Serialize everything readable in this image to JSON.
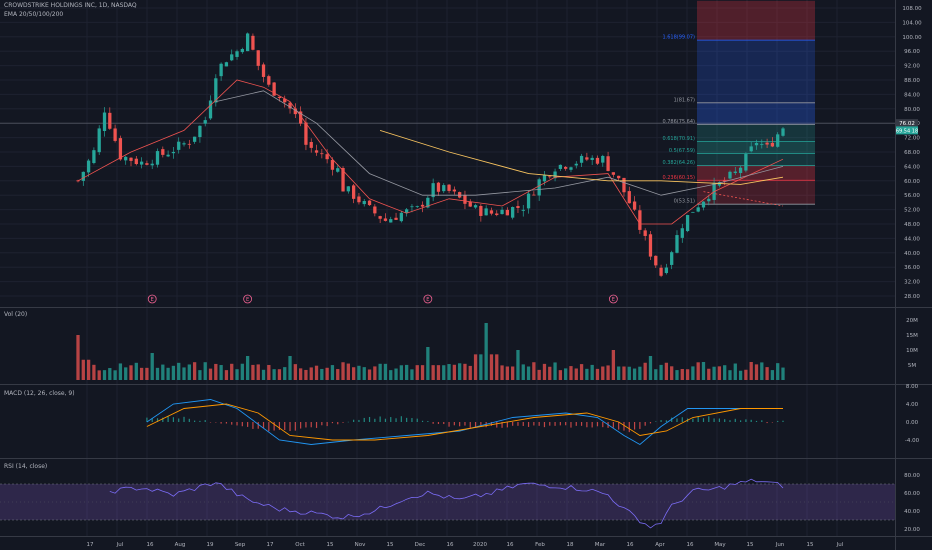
{
  "header": {
    "symbol": "CROWDSTRIKE HOLDINGS INC, 1D, NASDAQ",
    "ema": "EMA 20/50/100/200"
  },
  "panes": {
    "volume": "Vol (20)",
    "macd": "MACD (12, 26, close, 9)",
    "rsi": "RSI (14, close)"
  },
  "price_badges": [
    "76.02",
    "69.54 18"
  ],
  "earnings_marker": "E",
  "colors": {
    "up": "#26a69a",
    "down": "#ef5350",
    "bg": "#131722",
    "ema20": "#ef5350",
    "ema50": "#9598a1",
    "ema100": "#f7c35f",
    "macd": "#2196f3",
    "signal": "#ff9800",
    "rsi": "#7b6cf6"
  },
  "chart_data": [
    {
      "type": "candlestick",
      "name": "price",
      "x_ticks": [
        "17",
        "Jul",
        "16",
        "Aug",
        "19",
        "Sep",
        "17",
        "Oct",
        "15",
        "Nov",
        "15",
        "Dec",
        "16",
        "2020",
        "16",
        "Feb",
        "18",
        "Mar",
        "16",
        "Apr",
        "16",
        "May",
        "15",
        "Jun",
        "15",
        "Jul"
      ],
      "y_ticks": [
        "108.00",
        "104.00",
        "100.00",
        "96.00",
        "92.00",
        "88.00",
        "84.00",
        "80.00",
        "76.00",
        "72.00",
        "68.00",
        "64.00",
        "60.00",
        "56.00",
        "52.00",
        "48.00",
        "44.00",
        "40.00",
        "36.00",
        "32.00",
        "28.00"
      ],
      "ylim": [
        26,
        110
      ],
      "close_path": [
        [
          0,
          60
        ],
        [
          3,
          68
        ],
        [
          5,
          80
        ],
        [
          8,
          67
        ],
        [
          12,
          65
        ],
        [
          17,
          68
        ],
        [
          21,
          71
        ],
        [
          24,
          77
        ],
        [
          26,
          90
        ],
        [
          28,
          94
        ],
        [
          30,
          96
        ],
        [
          32,
          100
        ],
        [
          34,
          92
        ],
        [
          36,
          86
        ],
        [
          38,
          84
        ],
        [
          40,
          80
        ],
        [
          42,
          76
        ],
        [
          43,
          70
        ],
        [
          45,
          68
        ],
        [
          47,
          66
        ],
        [
          49,
          63
        ],
        [
          50,
          58
        ],
        [
          52,
          56
        ],
        [
          55,
          52
        ],
        [
          58,
          49
        ],
        [
          61,
          51
        ],
        [
          64,
          52
        ],
        [
          67,
          58
        ],
        [
          70,
          57
        ],
        [
          72,
          55
        ],
        [
          75,
          52
        ],
        [
          78,
          51
        ],
        [
          81,
          52
        ],
        [
          84,
          53
        ],
        [
          87,
          60
        ],
        [
          90,
          64
        ],
        [
          93,
          65
        ],
        [
          96,
          66
        ],
        [
          99,
          66
        ],
        [
          102,
          60
        ],
        [
          104,
          54
        ],
        [
          106,
          47
        ],
        [
          108,
          40
        ],
        [
          110,
          34
        ],
        [
          112,
          41
        ],
        [
          114,
          48
        ],
        [
          116,
          52
        ],
        [
          118,
          55
        ],
        [
          120,
          58
        ],
        [
          122,
          60
        ],
        [
          124,
          62
        ],
        [
          126,
          66
        ],
        [
          128,
          71
        ],
        [
          130,
          69
        ],
        [
          132,
          73
        ],
        [
          133,
          75
        ]
      ],
      "n_days": 134,
      "ema20": [
        [
          0,
          60
        ],
        [
          10,
          68
        ],
        [
          20,
          74
        ],
        [
          30,
          88
        ],
        [
          35,
          86
        ],
        [
          40,
          82
        ],
        [
          48,
          66
        ],
        [
          55,
          55
        ],
        [
          62,
          51
        ],
        [
          70,
          55
        ],
        [
          80,
          53
        ],
        [
          90,
          61
        ],
        [
          100,
          62
        ],
        [
          106,
          48
        ],
        [
          112,
          48
        ],
        [
          120,
          57
        ],
        [
          133,
          66
        ]
      ],
      "ema50": [
        [
          26,
          82
        ],
        [
          35,
          85
        ],
        [
          45,
          76
        ],
        [
          55,
          62
        ],
        [
          65,
          56
        ],
        [
          75,
          56
        ],
        [
          90,
          58
        ],
        [
          100,
          61
        ],
        [
          110,
          56
        ],
        [
          120,
          59
        ],
        [
          133,
          64
        ]
      ],
      "ema100": [
        [
          57,
          74
        ],
        [
          70,
          68
        ],
        [
          85,
          62
        ],
        [
          100,
          60
        ],
        [
          110,
          60
        ],
        [
          125,
          59
        ],
        [
          133,
          61
        ]
      ],
      "ema200": [
        [
          118,
          57
        ],
        [
          133,
          53
        ]
      ],
      "fibonacci": [
        {
          "label": "1.618(99.07)",
          "value": 99.07
        },
        {
          "label": "1(81.67)",
          "value": 81.67
        },
        {
          "label": "0.786(75.64)",
          "value": 75.64
        },
        {
          "label": "0.618(70.91)",
          "value": 70.91
        },
        {
          "label": "0.5(67.59)",
          "value": 67.59
        },
        {
          "label": "0.382(64.26)",
          "value": 64.26
        },
        {
          "label": "0.236(60.15)",
          "value": 60.15
        },
        {
          "label": "0(53.51)",
          "value": 53.51
        }
      ],
      "fib_upper_bound": 110,
      "earnings_days": [
        14,
        32,
        66,
        101
      ]
    },
    {
      "type": "bar",
      "name": "volume",
      "y_ticks": [
        "20M",
        "15M",
        "10M",
        "5M"
      ],
      "ylim": [
        0,
        25
      ],
      "spikes": [
        [
          0,
          15
        ],
        [
          14,
          9
        ],
        [
          32,
          8
        ],
        [
          40,
          8
        ],
        [
          66,
          11
        ],
        [
          77,
          19
        ],
        [
          83,
          10
        ],
        [
          101,
          10
        ],
        [
          108,
          8
        ],
        [
          118,
          6
        ],
        [
          127,
          6
        ]
      ],
      "baseline": 3
    },
    {
      "type": "line",
      "name": "macd",
      "y_ticks": [
        "8.00",
        "4.00",
        "0.00",
        "-4.00"
      ],
      "ylim": [
        -8,
        8
      ],
      "macd": [
        [
          13,
          0
        ],
        [
          18,
          4
        ],
        [
          25,
          5
        ],
        [
          30,
          3
        ],
        [
          38,
          -4
        ],
        [
          44,
          -5
        ],
        [
          52,
          -4
        ],
        [
          62,
          -3
        ],
        [
          72,
          -2
        ],
        [
          82,
          1
        ],
        [
          92,
          2
        ],
        [
          98,
          1
        ],
        [
          103,
          -3
        ],
        [
          106,
          -5
        ],
        [
          110,
          -1
        ],
        [
          115,
          3
        ],
        [
          125,
          3
        ],
        [
          133,
          3
        ]
      ],
      "signal": [
        [
          13,
          -1
        ],
        [
          20,
          3
        ],
        [
          28,
          4
        ],
        [
          34,
          2
        ],
        [
          40,
          -3
        ],
        [
          48,
          -4
        ],
        [
          56,
          -4
        ],
        [
          66,
          -3
        ],
        [
          76,
          -1
        ],
        [
          86,
          1
        ],
        [
          96,
          2
        ],
        [
          102,
          0
        ],
        [
          106,
          -3
        ],
        [
          111,
          -2
        ],
        [
          116,
          1
        ],
        [
          125,
          3
        ],
        [
          133,
          3
        ]
      ],
      "hist": [
        [
          20,
          1
        ],
        [
          30,
          -1
        ],
        [
          38,
          -2
        ],
        [
          46,
          -1
        ],
        [
          54,
          1
        ],
        [
          62,
          1
        ],
        [
          70,
          -1
        ],
        [
          80,
          -1
        ],
        [
          98,
          -1
        ],
        [
          104,
          -2
        ],
        [
          112,
          1
        ],
        [
          120,
          1
        ],
        [
          130,
          0
        ]
      ]
    },
    {
      "type": "line",
      "name": "rsi",
      "y_ticks": [
        "80.00",
        "60.00",
        "40.00",
        "20.00"
      ],
      "ylim": [
        15,
        85
      ],
      "rsi": [
        [
          6,
          62
        ],
        [
          12,
          66
        ],
        [
          18,
          58
        ],
        [
          26,
          72
        ],
        [
          32,
          52
        ],
        [
          38,
          42
        ],
        [
          44,
          38
        ],
        [
          50,
          33
        ],
        [
          56,
          40
        ],
        [
          62,
          55
        ],
        [
          66,
          60
        ],
        [
          72,
          52
        ],
        [
          78,
          60
        ],
        [
          84,
          70
        ],
        [
          90,
          68
        ],
        [
          96,
          64
        ],
        [
          100,
          58
        ],
        [
          103,
          42
        ],
        [
          106,
          30
        ],
        [
          108,
          22
        ],
        [
          110,
          28
        ],
        [
          112,
          45
        ],
        [
          116,
          62
        ],
        [
          120,
          64
        ],
        [
          124,
          70
        ],
        [
          128,
          74
        ],
        [
          133,
          68
        ]
      ]
    }
  ]
}
